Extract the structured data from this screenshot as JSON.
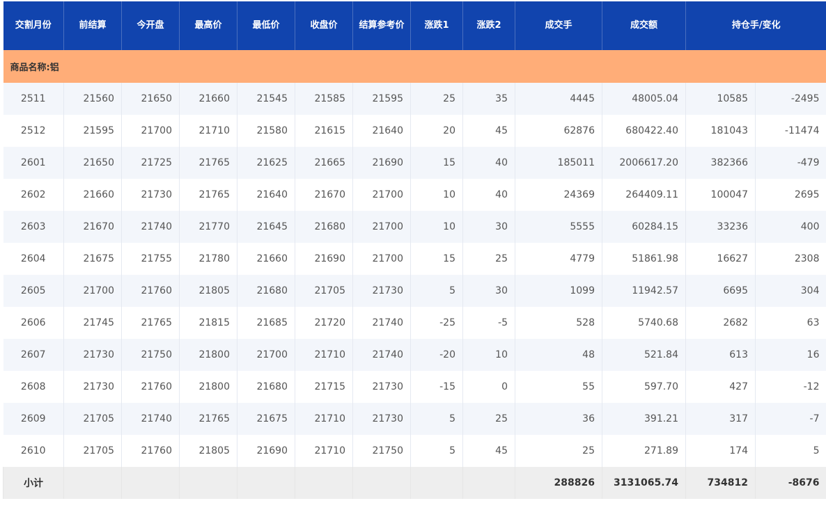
{
  "header": [
    "交割月份",
    "前结算",
    "今开盘",
    "最高价",
    "最低价",
    "收盘价",
    "结算参考价",
    "涨跌1",
    "涨跌2",
    "成交手",
    "成交额",
    "持仓手/变化"
  ],
  "category": "商品名称:铝",
  "rows": [
    [
      "2511",
      "21560",
      "21650",
      "21660",
      "21545",
      "21585",
      "21595",
      "25",
      "35",
      "4445",
      "48005.04",
      "10585",
      "-2495"
    ],
    [
      "2512",
      "21595",
      "21700",
      "21710",
      "21580",
      "21615",
      "21640",
      "20",
      "45",
      "62876",
      "680422.40",
      "181043",
      "-11474"
    ],
    [
      "2601",
      "21650",
      "21725",
      "21765",
      "21625",
      "21665",
      "21690",
      "15",
      "40",
      "185011",
      "2006617.20",
      "382366",
      "-479"
    ],
    [
      "2602",
      "21660",
      "21730",
      "21765",
      "21640",
      "21670",
      "21700",
      "10",
      "40",
      "24369",
      "264409.11",
      "100047",
      "2695"
    ],
    [
      "2603",
      "21670",
      "21740",
      "21770",
      "21645",
      "21680",
      "21700",
      "10",
      "30",
      "5555",
      "60284.15",
      "33236",
      "400"
    ],
    [
      "2604",
      "21675",
      "21755",
      "21780",
      "21660",
      "21690",
      "21700",
      "15",
      "25",
      "4779",
      "51861.98",
      "16627",
      "2308"
    ],
    [
      "2605",
      "21700",
      "21760",
      "21805",
      "21680",
      "21705",
      "21730",
      "5",
      "30",
      "1099",
      "11942.57",
      "6695",
      "304"
    ],
    [
      "2606",
      "21745",
      "21765",
      "21815",
      "21685",
      "21720",
      "21740",
      "-25",
      "-5",
      "528",
      "5740.68",
      "2682",
      "63"
    ],
    [
      "2607",
      "21730",
      "21750",
      "21800",
      "21700",
      "21710",
      "21740",
      "-20",
      "10",
      "48",
      "521.84",
      "613",
      "16"
    ],
    [
      "2608",
      "21730",
      "21760",
      "21800",
      "21680",
      "21715",
      "21730",
      "-15",
      "0",
      "55",
      "597.70",
      "427",
      "-12"
    ],
    [
      "2609",
      "21705",
      "21740",
      "21765",
      "21675",
      "21710",
      "21730",
      "5",
      "25",
      "36",
      "391.21",
      "317",
      "-7"
    ],
    [
      "2610",
      "21705",
      "21760",
      "21805",
      "21690",
      "21710",
      "21750",
      "5",
      "45",
      "25",
      "271.89",
      "174",
      "5"
    ]
  ],
  "subtotal": {
    "label": "小计",
    "volume": "288826",
    "turnover": "3131065.74",
    "open_interest": "734812",
    "change": "-8676"
  },
  "colors": {
    "header": "#1144ae",
    "category": "#ffad78",
    "stripe": "#f3f6fb",
    "subtotal": "#eeeeee"
  }
}
